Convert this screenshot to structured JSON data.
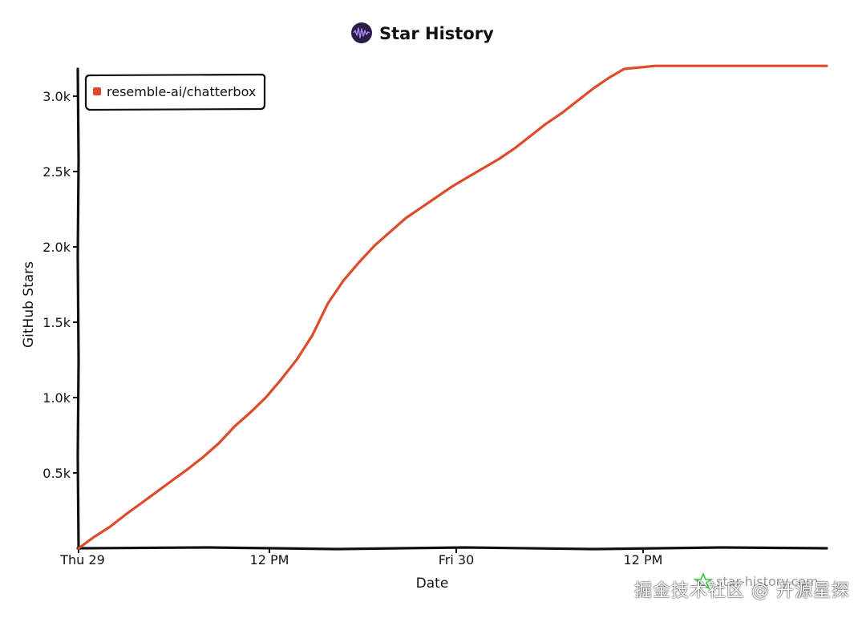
{
  "header": {
    "title": "Star History"
  },
  "watermark": {
    "text": "掘金技术社区 @ 开源星探"
  },
  "credit": {
    "text": "star-history.com"
  },
  "colors": {
    "series": "#dd4b2b",
    "axis": "#111111",
    "logo_bg": "#2b1d46",
    "logo_wave": "#a58df0",
    "credit_icon": "#3bc23b"
  },
  "chart_data": {
    "type": "line",
    "title": "Star History",
    "xlabel": "Date",
    "ylabel": "GitHub Stars",
    "x_ticks": [
      "Thu 29",
      "12 PM",
      "Fri 30",
      "12 PM"
    ],
    "y_ticks": [
      "0.5k",
      "1.0k",
      "1.5k",
      "2.0k",
      "2.5k",
      "3.0k"
    ],
    "x_unit": "hours since Thu 29 00:00",
    "xlim": [
      0,
      48
    ],
    "ylim": [
      0,
      3150
    ],
    "grid": false,
    "legend_position": "top-left",
    "series": [
      {
        "name": "resemble-ai/chatterbox",
        "x": [
          0,
          1,
          2,
          3,
          4,
          5,
          6,
          7,
          8,
          9,
          10,
          11,
          12,
          13,
          14,
          15,
          16,
          17,
          18,
          19,
          20,
          21,
          22,
          23,
          24,
          25,
          26,
          27,
          28,
          29,
          30,
          31,
          32,
          33,
          34,
          35,
          36,
          37,
          38,
          39,
          40,
          41,
          42,
          43,
          44,
          45,
          46,
          47,
          48
        ],
        "y": [
          0,
          75,
          140,
          220,
          295,
          370,
          445,
          520,
          600,
          690,
          800,
          890,
          990,
          1110,
          1240,
          1400,
          1610,
          1760,
          1880,
          1990,
          2080,
          2170,
          2240,
          2310,
          2380,
          2440,
          2500,
          2560,
          2630,
          2710,
          2790,
          2860,
          2940,
          3020,
          3090,
          3150,
          3160,
          3170,
          3170,
          3170,
          3170,
          3170,
          3170,
          3170,
          3170,
          3170,
          3170,
          3170,
          3170
        ]
      }
    ]
  }
}
